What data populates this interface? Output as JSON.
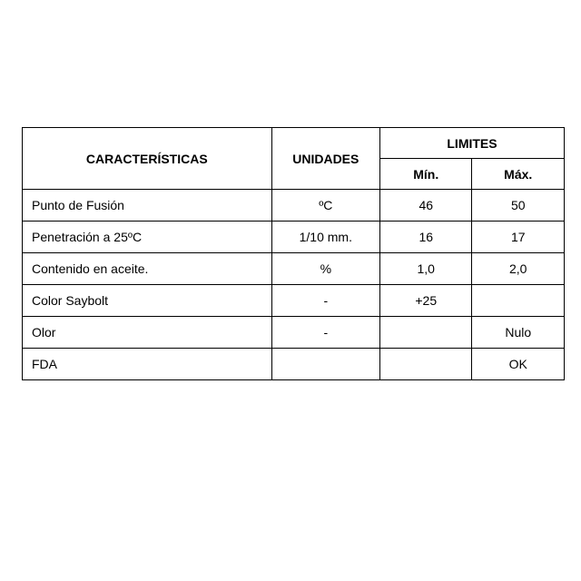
{
  "table": {
    "type": "table",
    "border_color": "#000000",
    "background_color": "#ffffff",
    "text_color": "#000000",
    "font_size": 14,
    "header_fontweight": "bold",
    "headers": {
      "caracteristicas": "CARACTERÍSTICAS",
      "unidades": "UNIDADES",
      "limites": "LIMITES",
      "min": "Mín.",
      "max": "Máx."
    },
    "rows": [
      {
        "caracteristica": "Punto de Fusión",
        "unidad": "ºC",
        "min": "46",
        "max": "50"
      },
      {
        "caracteristica": "Penetración a 25ºC",
        "unidad": "1/10 mm.",
        "min": "16",
        "max": "17"
      },
      {
        "caracteristica": "Contenido en aceite.",
        "unidad": "%",
        "min": "1,0",
        "max": "2,0"
      },
      {
        "caracteristica": "Color Saybolt",
        "unidad": "-",
        "min": "+25",
        "max": ""
      },
      {
        "caracteristica": "Olor",
        "unidad": "-",
        "min": "",
        "max": "Nulo"
      },
      {
        "caracteristica": "FDA",
        "unidad": "",
        "min": "",
        "max": "OK"
      }
    ]
  }
}
